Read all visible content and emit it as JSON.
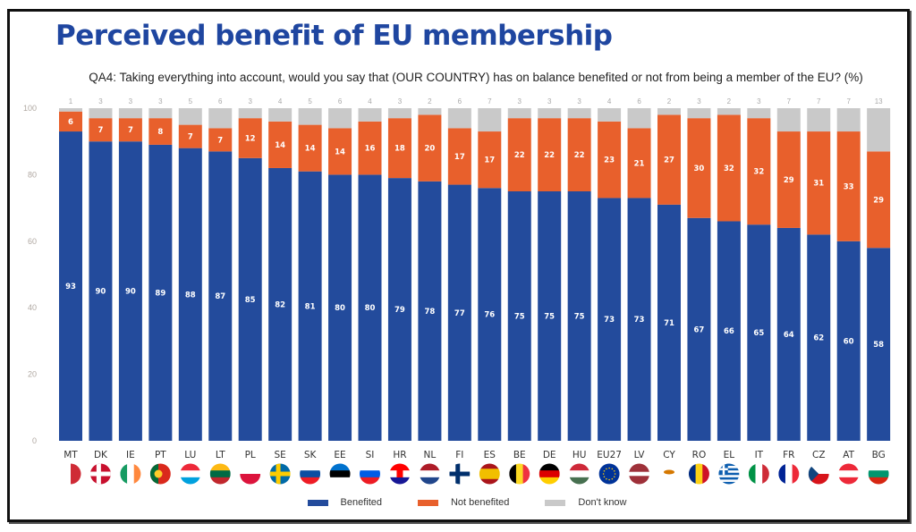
{
  "header": {
    "title": "Perceived benefit of EU membership",
    "subtitle": "QA4: Taking everything into account, would you say that (OUR COUNTRY) has on balance benefited or not from being a member of the EU?  (%)"
  },
  "colors": {
    "benefited": "#234b9c",
    "not_benefited": "#e8602c",
    "dont_know": "#c9c9c9",
    "axis_text": "#b0a8a2",
    "value_text_light": "#ffffff",
    "top_label_text": "#aaaaaa"
  },
  "legend": [
    {
      "label": "Benefited",
      "color_key": "benefited"
    },
    {
      "label": "Not benefited",
      "color_key": "not_benefited"
    },
    {
      "label": "Don't know",
      "color_key": "dont_know"
    }
  ],
  "chart_data": {
    "type": "bar",
    "stacked": true,
    "title": "Perceived benefit of EU membership",
    "subtitle": "QA4: Taking everything into account, would you say that (OUR COUNTRY) has on balance benefited or not from being a member of the EU?  (%)",
    "xlabel": "",
    "ylabel": "",
    "ylim": [
      0,
      100
    ],
    "yticks": [
      0,
      20,
      40,
      60,
      80,
      100
    ],
    "grid": false,
    "legend_position": "bottom",
    "categories": [
      "MT",
      "DK",
      "IE",
      "PT",
      "LU",
      "LT",
      "PL",
      "SE",
      "SK",
      "EE",
      "SI",
      "HR",
      "NL",
      "FI",
      "ES",
      "BE",
      "DE",
      "HU",
      "EU27",
      "LV",
      "CY",
      "RO",
      "EL",
      "IT",
      "FR",
      "CZ",
      "AT",
      "BG"
    ],
    "series": [
      {
        "name": "Benefited",
        "values": [
          93,
          90,
          90,
          89,
          88,
          87,
          85,
          82,
          81,
          80,
          80,
          79,
          78,
          77,
          76,
          75,
          75,
          75,
          73,
          73,
          71,
          67,
          66,
          65,
          64,
          62,
          60,
          58
        ]
      },
      {
        "name": "Not benefited",
        "values": [
          6,
          7,
          7,
          8,
          7,
          7,
          12,
          14,
          14,
          14,
          16,
          18,
          20,
          17,
          17,
          22,
          22,
          22,
          23,
          21,
          27,
          30,
          32,
          32,
          29,
          31,
          33,
          29
        ]
      },
      {
        "name": "Don't know",
        "values": [
          1,
          3,
          3,
          3,
          5,
          6,
          3,
          4,
          5,
          6,
          4,
          3,
          2,
          6,
          7,
          3,
          3,
          3,
          4,
          6,
          2,
          3,
          2,
          3,
          7,
          7,
          7,
          13
        ]
      }
    ],
    "flags": [
      "malta",
      "denmark",
      "ireland",
      "portugal",
      "luxembourg",
      "lithuania",
      "poland",
      "sweden",
      "slovakia",
      "estonia",
      "slovenia",
      "croatia",
      "netherlands",
      "finland",
      "spain",
      "belgium",
      "germany",
      "hungary",
      "eu",
      "latvia",
      "cyprus",
      "romania",
      "greece",
      "italy",
      "france",
      "czechia",
      "austria",
      "bulgaria"
    ]
  }
}
